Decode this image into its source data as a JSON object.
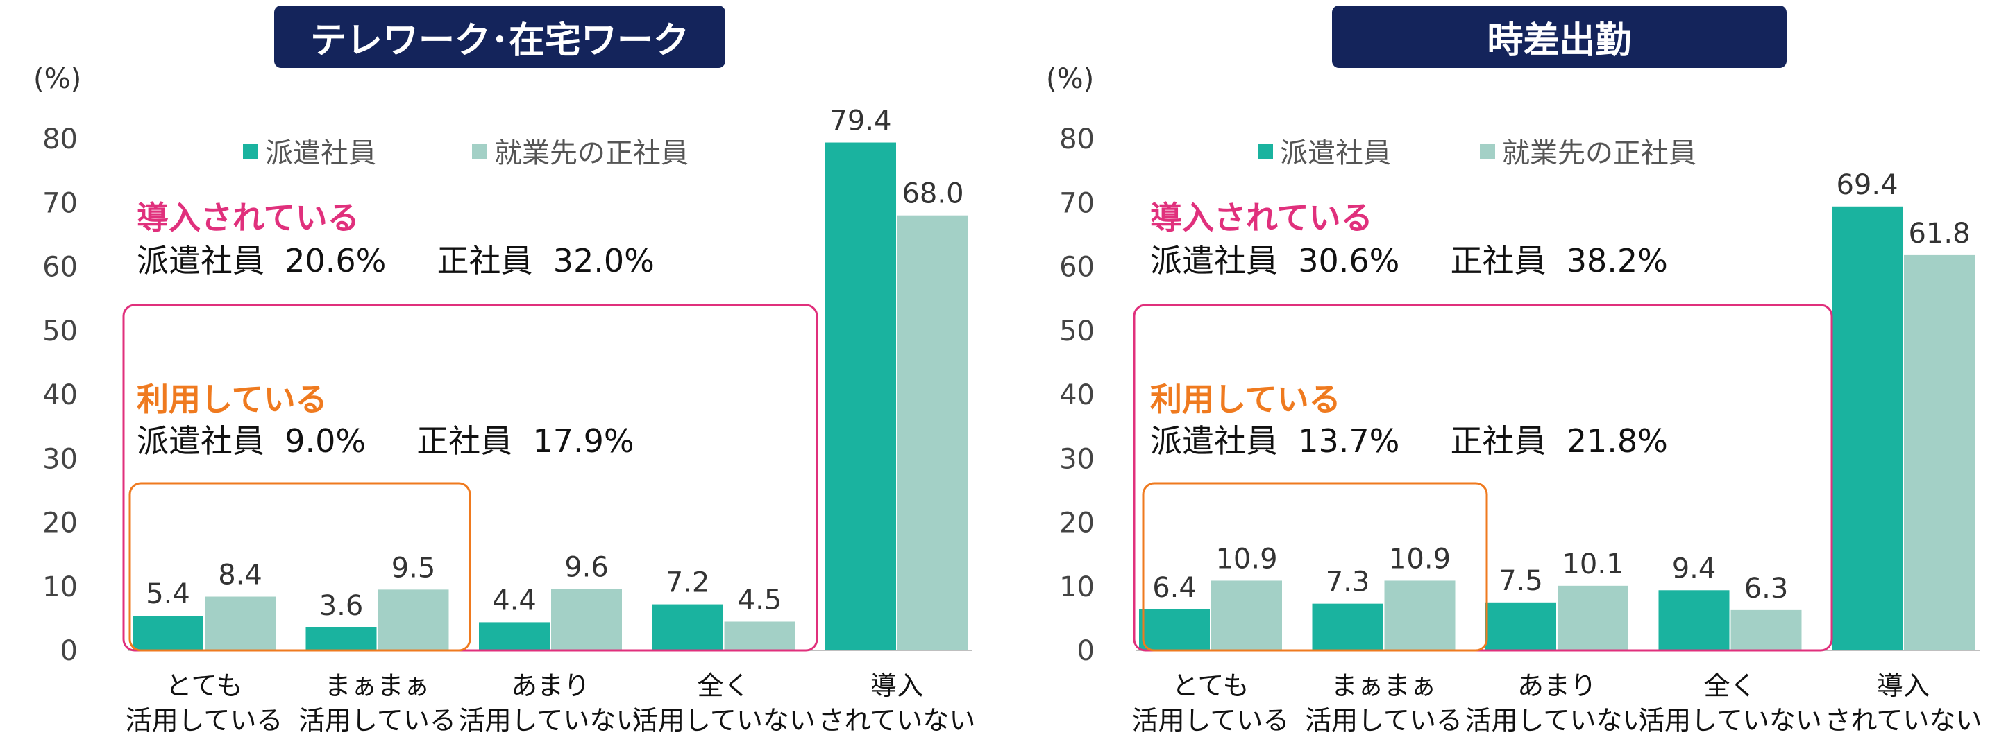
{
  "colors": {
    "title_bg": "#14245b",
    "dispatched": "#1ab39f",
    "regular": "#a3d0c6",
    "pink": "#e0307c",
    "orange": "#ef7a1f",
    "axis": "#bfbfbf"
  },
  "legend": {
    "dispatched": "派遣社員",
    "regular": "就業先の正社員"
  },
  "chart_data": [
    {
      "type": "bar",
      "title": "テレワーク･在宅ワーク",
      "unit": "(%)",
      "ylim": [
        0,
        80
      ],
      "yticks": [
        "0",
        "10",
        "20",
        "30",
        "40",
        "50",
        "60",
        "70",
        "80"
      ],
      "categories": [
        {
          "line1": "とても",
          "line2": "活用している"
        },
        {
          "line1": "まぁまぁ",
          "line2": "活用している"
        },
        {
          "line1": "あまり",
          "line2": "活用していない"
        },
        {
          "line1": "全く",
          "line2": "活用していない"
        },
        {
          "line1": "導入",
          "line2": "されていない"
        }
      ],
      "series": [
        {
          "name": "派遣社員",
          "values": [
            5.4,
            3.6,
            4.4,
            7.2,
            79.4
          ],
          "labels": [
            "5.4",
            "3.6",
            "4.4",
            "7.2",
            "79.4"
          ]
        },
        {
          "name": "就業先の正社員",
          "values": [
            8.4,
            9.5,
            9.6,
            4.5,
            68.0
          ],
          "labels": [
            "8.4",
            "9.5",
            "9.6",
            "4.5",
            "68.0"
          ]
        }
      ],
      "callouts": {
        "introduced": {
          "heading": "導入されている",
          "line": "派遣社員  20.6%     正社員  32.0%"
        },
        "using": {
          "heading": "利用している",
          "line": "派遣社員  9.0%     正社員  17.9%"
        }
      }
    },
    {
      "type": "bar",
      "title": "時差出勤",
      "unit": "(%)",
      "ylim": [
        0,
        80
      ],
      "yticks": [
        "0",
        "10",
        "20",
        "30",
        "40",
        "50",
        "60",
        "70",
        "80"
      ],
      "categories": [
        {
          "line1": "とても",
          "line2": "活用している"
        },
        {
          "line1": "まぁまぁ",
          "line2": "活用している"
        },
        {
          "line1": "あまり",
          "line2": "活用していない"
        },
        {
          "line1": "全く",
          "line2": "活用していない"
        },
        {
          "line1": "導入",
          "line2": "されていない"
        }
      ],
      "series": [
        {
          "name": "派遣社員",
          "values": [
            6.4,
            7.3,
            7.5,
            9.4,
            69.4
          ],
          "labels": [
            "6.4",
            "7.3",
            "7.5",
            "9.4",
            "69.4"
          ]
        },
        {
          "name": "就業先の正社員",
          "values": [
            10.9,
            10.9,
            10.1,
            6.3,
            61.8
          ],
          "labels": [
            "10.9",
            "10.9",
            "10.1",
            "6.3",
            "61.8"
          ]
        }
      ],
      "callouts": {
        "introduced": {
          "heading": "導入されている",
          "line": "派遣社員  30.6%     正社員  38.2%"
        },
        "using": {
          "heading": "利用している",
          "line": "派遣社員  13.7%     正社員  21.8%"
        }
      }
    }
  ]
}
